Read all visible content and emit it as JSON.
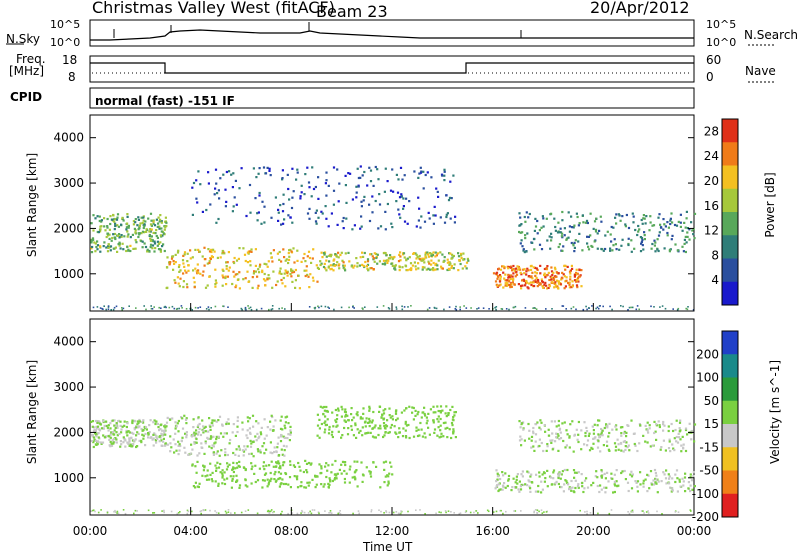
{
  "header": {
    "station": "Christmas Valley West (fitACF)",
    "beam": "Beam 23",
    "date": "20/Apr/2012"
  },
  "top_panel": {
    "left_label": "N.Sky",
    "right_label": "N.Search",
    "left_ticks": [
      "10^5",
      "10^0"
    ],
    "right_ticks": [
      "10^5",
      "10^0"
    ]
  },
  "freq_panel": {
    "left_label_1": "Freq.",
    "left_label_2": "[MHz]",
    "right_label": "Nave",
    "left_ticks": [
      "18",
      "8"
    ],
    "right_ticks": [
      "60",
      "0"
    ]
  },
  "cpid_panel": {
    "label": "CPID",
    "text": "normal (fast) -151 IF"
  },
  "chart_data": [
    {
      "type": "heatmap",
      "ylabel": "Slant Range [km]",
      "yticks": [
        "4000",
        "3000",
        "2000",
        "1000"
      ],
      "y_values": [
        4000,
        3000,
        2000,
        1000
      ],
      "ylim": [
        180,
        4500
      ],
      "xlim": [
        "00:00",
        "24:00"
      ],
      "colorbar": {
        "label": "Power [dB]",
        "ticks": [
          "28",
          "24",
          "20",
          "16",
          "12",
          "8",
          "4"
        ],
        "tick_values": [
          28,
          24,
          20,
          16,
          12,
          8,
          4
        ],
        "range": [
          0,
          30
        ],
        "colors": [
          "#1a1acc",
          "#2a4f9e",
          "#2f7d78",
          "#58a85a",
          "#a6c83a",
          "#f4c020",
          "#f07b18",
          "#e03018"
        ]
      },
      "features": [
        {
          "start_h": 0.0,
          "end_h": 3.0,
          "range_km": [
            1500,
            2350
          ],
          "power_db": 14
        },
        {
          "start_h": 3.0,
          "end_h": 9.0,
          "range_km": [
            700,
            1600
          ],
          "power_db": 20
        },
        {
          "start_h": 9.0,
          "end_h": 15.0,
          "range_km": [
            1100,
            1500
          ],
          "power_db": 18
        },
        {
          "start_h": 4.0,
          "end_h": 14.5,
          "range_km": [
            2000,
            3400
          ],
          "power_db": 6
        },
        {
          "start_h": 16.0,
          "end_h": 19.5,
          "range_km": [
            700,
            1200
          ],
          "power_db": 24
        },
        {
          "start_h": 17.0,
          "end_h": 24.0,
          "range_km": [
            1500,
            2400
          ],
          "power_db": 10
        }
      ]
    },
    {
      "type": "heatmap",
      "ylabel": "Slant Range [km]",
      "yticks": [
        "4000",
        "3000",
        "2000",
        "1000"
      ],
      "y_values": [
        4000,
        3000,
        2000,
        1000
      ],
      "ylim": [
        180,
        4500
      ],
      "xlim": [
        "00:00",
        "24:00"
      ],
      "xlabel": "Time UT",
      "xticks": [
        "00:00",
        "04:00",
        "08:00",
        "12:00",
        "16:00",
        "20:00",
        "00:00"
      ],
      "x_values": [
        0,
        4,
        8,
        12,
        16,
        20,
        24
      ],
      "colorbar": {
        "label": "Velocity [m s^-1]",
        "ticks": [
          "200",
          "100",
          "50",
          "15",
          "-15",
          "-50",
          "-100",
          "-200"
        ],
        "tick_values": [
          200,
          100,
          50,
          15,
          -15,
          -50,
          -100,
          -200
        ],
        "range": [
          -250,
          250
        ],
        "colors": [
          "#2040c8",
          "#1a8a8a",
          "#2a9a3a",
          "#7ad040",
          "#c8c8c8",
          "#f0c020",
          "#f08018",
          "#e02020"
        ]
      },
      "features": [
        {
          "start_h": 0.0,
          "end_h": 3.0,
          "range_km": [
            1700,
            2300
          ],
          "velocity": 0
        },
        {
          "start_h": 3.0,
          "end_h": 8.0,
          "range_km": [
            1500,
            2400
          ],
          "velocity": 0
        },
        {
          "start_h": 4.0,
          "end_h": 12.0,
          "range_km": [
            800,
            1400
          ],
          "velocity": 40
        },
        {
          "start_h": 9.0,
          "end_h": 14.5,
          "range_km": [
            1900,
            2600
          ],
          "velocity": 30
        },
        {
          "start_h": 16.0,
          "end_h": 24.0,
          "range_km": [
            700,
            1200
          ],
          "velocity": 0
        },
        {
          "start_h": 17.0,
          "end_h": 24.0,
          "range_km": [
            1600,
            2300
          ],
          "velocity": 0
        }
      ]
    }
  ]
}
